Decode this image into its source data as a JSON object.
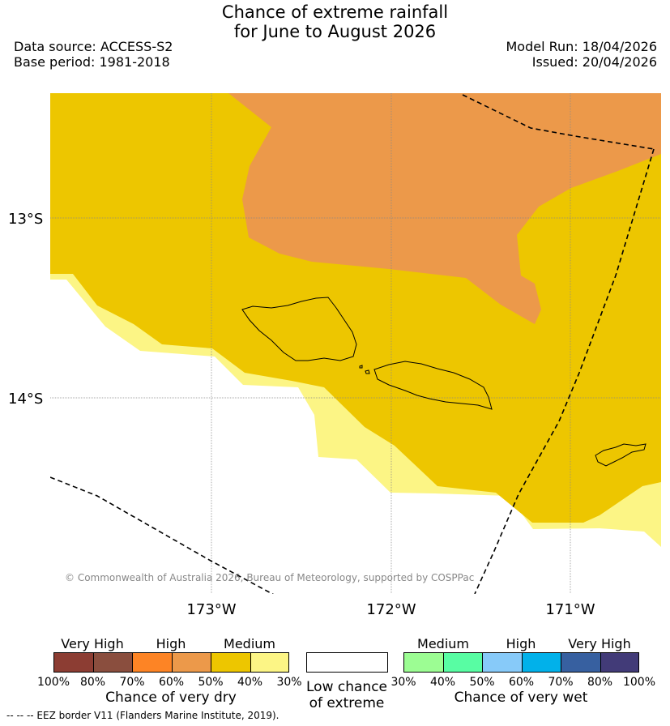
{
  "title": {
    "line1": "Chance of extreme rainfall",
    "line2": "for June to August 2026"
  },
  "header_left": {
    "data_source": "Data source: ACCESS-S2",
    "base_period": "Base period: 1981-2018"
  },
  "header_right": {
    "model_run": "Model Run: 18/04/2026",
    "issued": "Issued: 20/04/2026"
  },
  "map": {
    "lat_labels": [
      "13°S",
      "14°S"
    ],
    "lon_labels": [
      "173°W",
      "172°W",
      "171°W"
    ],
    "copyright": "© Commonwealth of Australia 2026, Bureau of Meteorology, supported by COSPPac",
    "colors": {
      "high_dry": "#ec994a",
      "medium_dry": "#edc600",
      "low_medium_dry": "#fcf585",
      "none": "#ffffff"
    }
  },
  "legend": {
    "dry": {
      "categories": [
        "Very High",
        "High",
        "Medium"
      ],
      "colors": [
        "#8c3d33",
        "#8a4e3e",
        "#fd8425",
        "#ec994a",
        "#edc600",
        "#fcf585"
      ],
      "ticks": [
        "100%",
        "80%",
        "70%",
        "60%",
        "50%",
        "40%",
        "30%"
      ],
      "title": "Chance of very dry"
    },
    "low": {
      "line1": "Low chance",
      "line2": "of extreme"
    },
    "wet": {
      "categories": [
        "Medium",
        "High",
        "Very High"
      ],
      "colors": [
        "#9cfd93",
        "#58fda3",
        "#87caf9",
        "#01b1ea",
        "#3760a0",
        "#423b78"
      ],
      "ticks": [
        "30%",
        "40%",
        "50%",
        "60%",
        "70%",
        "80%",
        "100%"
      ],
      "title": "Chance of very wet"
    }
  },
  "footnote": "-- -- -- EEZ border V11 (Flanders Marine Institute, 2019)."
}
